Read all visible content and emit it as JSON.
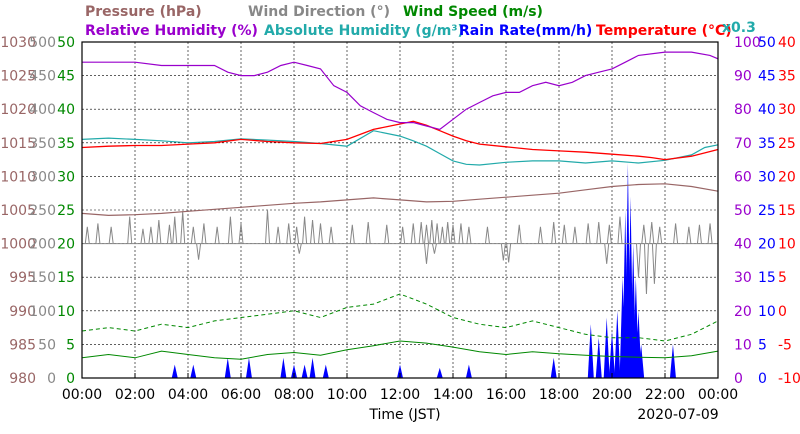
{
  "chart_data": {
    "type": "line",
    "xlabel": "Time (JST)",
    "date": "2020-07-09",
    "x_ticks": [
      "00:00",
      "02:00",
      "04:00",
      "06:00",
      "08:00",
      "10:00",
      "12:00",
      "14:00",
      "16:00",
      "18:00",
      "20:00",
      "22:00",
      "00:00"
    ],
    "grid": true,
    "legend": {
      "row1": [
        {
          "key": "pressure",
          "text": "Pressure (hPa)",
          "color": "#996666"
        },
        {
          "key": "wind_dir",
          "text": "Wind Direction (°)",
          "color": "#888888"
        },
        {
          "key": "wind_speed",
          "text": "Wind Speed (m/s)",
          "color": "#008800"
        }
      ],
      "row2": [
        {
          "key": "rh",
          "text": "Relative Humidity (%)",
          "color": "#9900cc"
        },
        {
          "key": "ah",
          "text": "Absolute Humidity (g/m³)",
          "color": "#22aaaa"
        },
        {
          "key": "rain",
          "text": "Rain Rate(mm/h)",
          "color": "#0000ff"
        },
        {
          "key": "temp",
          "text": "Temperature (°C)",
          "color": "#ff0000"
        }
      ],
      "ah_scale": "x0.3"
    },
    "axes": {
      "pressure": {
        "color": "#996666",
        "range": [
          980,
          1030
        ],
        "ticks": [
          "1030",
          "1025",
          "1020",
          "1015",
          "1010",
          "1005",
          "1000",
          "995",
          "990",
          "985",
          "980"
        ]
      },
      "wind_dir": {
        "color": "#888888",
        "range": [
          0,
          500
        ],
        "ticks": [
          "500",
          "450",
          "400",
          "350",
          "300",
          "250",
          "200",
          "150",
          "100",
          "50",
          "0"
        ]
      },
      "wind_speed": {
        "color": "#008800",
        "range": [
          0,
          50
        ],
        "ticks": [
          "50",
          "45",
          "40",
          "35",
          "30",
          "25",
          "20",
          "15",
          "10",
          "5",
          "0"
        ]
      },
      "rh": {
        "color": "#9900cc",
        "range": [
          0,
          100
        ],
        "ticks": [
          "100",
          "90",
          "80",
          "70",
          "60",
          "50",
          "40",
          "30",
          "20",
          "10",
          "0"
        ]
      },
      "rain": {
        "color": "#0000ff",
        "range": [
          0,
          50
        ],
        "ticks": [
          "50",
          "45",
          "40",
          "35",
          "30",
          "25",
          "20",
          "15",
          "10",
          "5",
          "0"
        ]
      },
      "temp": {
        "color": "#ff0000",
        "range": [
          -10,
          40
        ],
        "ticks": [
          "40",
          "35",
          "30",
          "25",
          "20",
          "15",
          "10",
          "5",
          "0",
          "-5",
          "-10"
        ]
      }
    },
    "series": [
      {
        "key": "rh",
        "axis": "rh",
        "x_hours": [
          0,
          2,
          3,
          4,
          5,
          5.5,
          6,
          6.5,
          7,
          7.5,
          8,
          8.5,
          9,
          9.5,
          10,
          10.5,
          11,
          11.5,
          12,
          12.5,
          13,
          13.5,
          14,
          14.5,
          15,
          15.5,
          16,
          16.5,
          17,
          17.5,
          18,
          18.5,
          19,
          19.5,
          20,
          20.5,
          21,
          22,
          23,
          23.7,
          24
        ],
        "values": [
          94,
          94,
          93,
          93,
          93,
          91,
          90,
          90,
          91,
          93,
          94,
          93,
          92,
          87,
          85,
          81,
          79,
          77,
          76,
          76,
          75,
          74,
          77,
          80,
          82,
          84,
          85,
          85,
          87,
          88,
          87,
          88,
          90,
          91,
          92,
          94,
          96,
          97,
          97,
          96,
          95
        ]
      },
      {
        "key": "ah",
        "axis": "temp",
        "scale": 0.3,
        "x_hours": [
          0,
          1,
          2,
          3,
          4,
          5,
          6,
          7,
          8,
          9,
          10,
          11,
          12,
          12.5,
          13,
          13.5,
          14,
          14.5,
          15,
          16,
          17,
          18,
          19,
          20,
          21,
          22,
          23,
          23.5,
          24
        ],
        "values": [
          25.5,
          25.7,
          25.5,
          25.3,
          25.0,
          25.2,
          25.6,
          25.4,
          25.2,
          24.9,
          24.5,
          26.8,
          26.0,
          25.3,
          24.5,
          23.4,
          22.3,
          21.8,
          21.7,
          22.1,
          22.3,
          22.3,
          22.0,
          22.3,
          22.0,
          22.4,
          23.2,
          24.3,
          24.7
        ]
      },
      {
        "key": "temp",
        "axis": "temp",
        "x_hours": [
          0,
          1,
          2,
          3,
          4,
          5,
          6,
          7,
          8,
          9,
          10,
          11,
          12,
          12.5,
          13,
          13.5,
          14,
          14.5,
          15,
          16,
          17,
          18,
          19,
          20,
          21,
          21.5,
          22,
          23,
          23.5,
          24
        ],
        "values": [
          24.3,
          24.5,
          24.6,
          24.6,
          24.8,
          25.0,
          25.5,
          25.2,
          25.0,
          24.9,
          25.5,
          27.0,
          27.8,
          28.2,
          27.6,
          26.8,
          26.0,
          25.3,
          24.8,
          24.4,
          24.0,
          23.8,
          23.6,
          23.3,
          23.0,
          22.8,
          22.5,
          23.0,
          23.5,
          24.0
        ]
      },
      {
        "key": "pressure",
        "axis": "pressure",
        "x_hours": [
          0,
          1,
          2,
          3,
          4,
          5,
          6,
          7,
          8,
          9,
          10,
          11,
          12,
          13,
          14,
          15,
          16,
          17,
          18,
          19,
          20,
          21,
          22,
          23,
          24
        ],
        "values": [
          1004.5,
          1004.2,
          1004.3,
          1004.5,
          1004.8,
          1005.1,
          1005.4,
          1005.7,
          1006.0,
          1006.2,
          1006.5,
          1006.8,
          1006.5,
          1006.2,
          1006.3,
          1006.6,
          1006.9,
          1007.2,
          1007.5,
          1008.0,
          1008.5,
          1008.8,
          1008.9,
          1008.5,
          1007.8
        ]
      },
      {
        "key": "wind_dir_base",
        "axis": "wind_dir",
        "x_hours": [
          0,
          24
        ],
        "values": [
          200,
          200
        ]
      },
      {
        "key": "wind_dir_spikes",
        "axis": "wind_dir",
        "x_hours": [
          0.2,
          0.6,
          1.1,
          1.8,
          2.3,
          2.6,
          2.9,
          3.3,
          3.5,
          3.8,
          4.2,
          4.6,
          5.1,
          5.6,
          6.0,
          7.0,
          7.4,
          7.8,
          8.1,
          8.4,
          8.7,
          9.0,
          9.4,
          10.2,
          10.8,
          11.5,
          12.1,
          12.5,
          12.8,
          13.0,
          13.2,
          13.4,
          13.6,
          13.8,
          14.0,
          14.3,
          14.6,
          15.3,
          16.5,
          17.3,
          17.8,
          18.2,
          18.6,
          19.1,
          19.5,
          19.9,
          20.3,
          21.2,
          21.5,
          21.8,
          22.4,
          22.9,
          23.3,
          23.7
        ],
        "values": [
          225,
          230,
          225,
          240,
          222,
          225,
          235,
          228,
          240,
          248,
          225,
          230,
          225,
          240,
          230,
          250,
          225,
          230,
          225,
          240,
          235,
          230,
          225,
          228,
          232,
          228,
          225,
          230,
          232,
          228,
          235,
          230,
          225,
          232,
          228,
          230,
          225,
          225,
          228,
          225,
          232,
          228,
          225,
          230,
          232,
          228,
          240,
          228,
          232,
          225,
          230,
          225,
          228,
          230
        ]
      },
      {
        "key": "wind_dir_dips",
        "axis": "wind_dir",
        "x_hours": [
          4.4,
          8.2,
          13.0,
          13.3,
          15.9,
          16.1,
          19.8,
          21.0,
          21.3,
          21.6
        ],
        "values": [
          176,
          185,
          170,
          185,
          175,
          172,
          170,
          150,
          125,
          140
        ]
      },
      {
        "key": "wind_speed_avg",
        "axis": "wind_speed",
        "x_hours": [
          0,
          1,
          2,
          3,
          4,
          5,
          6,
          7,
          8,
          9,
          10,
          11,
          12,
          13,
          14,
          15,
          16,
          17,
          18,
          19,
          20,
          21,
          22,
          23,
          24
        ],
        "values": [
          3,
          3.5,
          3,
          4,
          3.5,
          3,
          2.8,
          3.5,
          3.8,
          3.4,
          4.2,
          4.8,
          5.5,
          5.2,
          4.6,
          3.9,
          3.5,
          3.9,
          3.6,
          3.4,
          3.2,
          3.1,
          3.0,
          3.3,
          4.0
        ]
      },
      {
        "key": "wind_speed_gust",
        "axis": "wind_speed",
        "x_hours": [
          0,
          1,
          2,
          3,
          4,
          5,
          6,
          7,
          8,
          9,
          10,
          11,
          12,
          13,
          14,
          15,
          16,
          17,
          18,
          19,
          20,
          21,
          22,
          23,
          24
        ],
        "values": [
          7,
          7.5,
          7,
          8,
          7.5,
          8.5,
          9,
          9.5,
          10,
          9,
          10.5,
          11,
          12.5,
          11,
          9,
          8,
          7.5,
          8.5,
          7.5,
          6.5,
          6,
          6,
          5.5,
          6.5,
          8.5
        ]
      },
      {
        "key": "rain",
        "axis": "rain",
        "x_hours": [
          3.5,
          4.2,
          5.5,
          6.3,
          7.6,
          8.0,
          8.4,
          8.7,
          9.2,
          12.0,
          13.5,
          14.6,
          17.8,
          19.2,
          19.5,
          19.8,
          20.0,
          20.2,
          20.4,
          20.5,
          20.6,
          20.7,
          20.8,
          20.9,
          21.0,
          21.1,
          22.3
        ],
        "values": [
          2,
          2,
          3,
          3,
          3,
          2,
          2,
          3,
          2,
          2,
          1.5,
          2,
          3,
          8,
          6,
          9,
          7,
          10,
          15,
          25,
          32,
          27,
          20,
          15,
          10,
          5,
          5
        ]
      }
    ]
  }
}
